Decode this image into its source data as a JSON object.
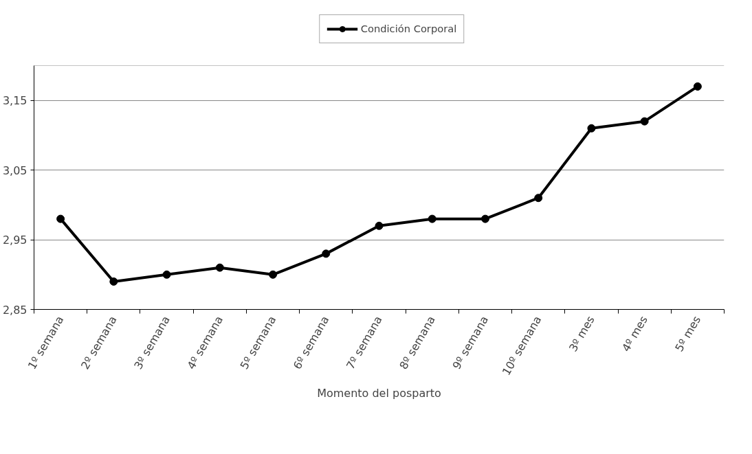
{
  "chart_data": {
    "type": "line",
    "xlabel": "Momento del posparto",
    "categories": [
      "1º semana",
      "2º semana",
      "3º semana",
      "4º semana",
      "5º semana",
      "6º semana",
      "7º semana",
      "8º semana",
      "9º semana",
      "10º semana",
      "3º mes",
      "4º mes",
      "5º mes"
    ],
    "series": [
      {
        "name": "Condición Corporal",
        "color": "#000000",
        "values": [
          2.98,
          2.89,
          2.9,
          2.91,
          2.9,
          2.93,
          2.97,
          2.98,
          2.98,
          3.01,
          3.11,
          3.12,
          3.17
        ]
      }
    ],
    "ylim": [
      2.85,
      3.2
    ],
    "yticks": [
      {
        "value": 2.85,
        "label": "2,85"
      },
      {
        "value": 2.95,
        "label": "2,95"
      },
      {
        "value": 3.05,
        "label": "3,05"
      },
      {
        "value": 3.15,
        "label": "3,15"
      }
    ],
    "grid": "y",
    "legend": "top",
    "marker": "circle",
    "line_style": "solid"
  }
}
